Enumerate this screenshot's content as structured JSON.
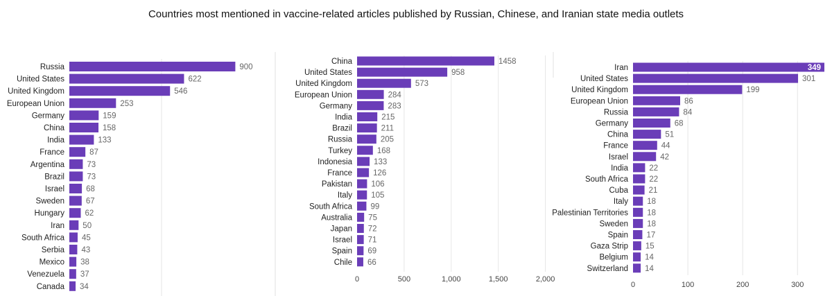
{
  "title": "Countries most mentioned in vaccine-related articles published by Russian, Chinese, and Iranian state media outlets",
  "colors": {
    "bar": "#6a3db8",
    "grid": "#e6e6e6"
  },
  "chart_data": [
    {
      "type": "bar",
      "orientation": "horizontal",
      "categories": [
        "Russia",
        "United States",
        "United Kingdom",
        "European Union",
        "Germany",
        "China",
        "India",
        "France",
        "Argentina",
        "Brazil",
        "Israel",
        "Sweden",
        "Hungary",
        "Iran",
        "South Africa",
        "Serbia",
        "Mexico",
        "Venezuela",
        "Canada"
      ],
      "values": [
        900,
        622,
        546,
        253,
        159,
        158,
        133,
        87,
        73,
        73,
        68,
        67,
        62,
        50,
        45,
        43,
        38,
        37,
        34
      ],
      "xlim": [
        0,
        1000
      ],
      "xticks": [],
      "gridlines": [
        500
      ]
    },
    {
      "type": "bar",
      "orientation": "horizontal",
      "categories": [
        "China",
        "United States",
        "United Kingdom",
        "European Union",
        "Germany",
        "India",
        "Brazil",
        "Russia",
        "Turkey",
        "Indonesia",
        "France",
        "Pakistan",
        "Italy",
        "South Africa",
        "Australia",
        "Japan",
        "Israel",
        "Spain",
        "Chile"
      ],
      "values": [
        1458,
        958,
        573,
        284,
        283,
        215,
        211,
        205,
        168,
        133,
        126,
        106,
        105,
        99,
        75,
        72,
        71,
        69,
        66
      ],
      "xlim": [
        0,
        2000
      ],
      "xticks": [
        0,
        500,
        1000,
        1500,
        2000
      ],
      "xtick_labels": [
        "0",
        "500",
        "1,000",
        "1,500",
        "2,000"
      ],
      "gridlines": [
        500,
        1000,
        1500,
        2000
      ]
    },
    {
      "type": "bar",
      "orientation": "horizontal",
      "categories": [
        "Iran",
        "United States",
        "United Kingdom",
        "European Union",
        "Russia",
        "Germany",
        "China",
        "France",
        "Israel",
        "India",
        "South Africa",
        "Cuba",
        "Italy",
        "Palestinian Territories",
        "Sweden",
        "Spain",
        "Gaza Strip",
        "Belgium",
        "Switzerland"
      ],
      "values": [
        349,
        301,
        199,
        86,
        84,
        68,
        51,
        44,
        42,
        22,
        22,
        21,
        18,
        18,
        18,
        17,
        15,
        14,
        14
      ],
      "xlim": [
        0,
        349
      ],
      "xticks": [
        0,
        100,
        200,
        300
      ],
      "xtick_labels": [
        "0",
        "100",
        "200",
        "300"
      ],
      "gridlines": [
        100,
        200,
        300
      ],
      "inside_label_index": 0
    }
  ]
}
